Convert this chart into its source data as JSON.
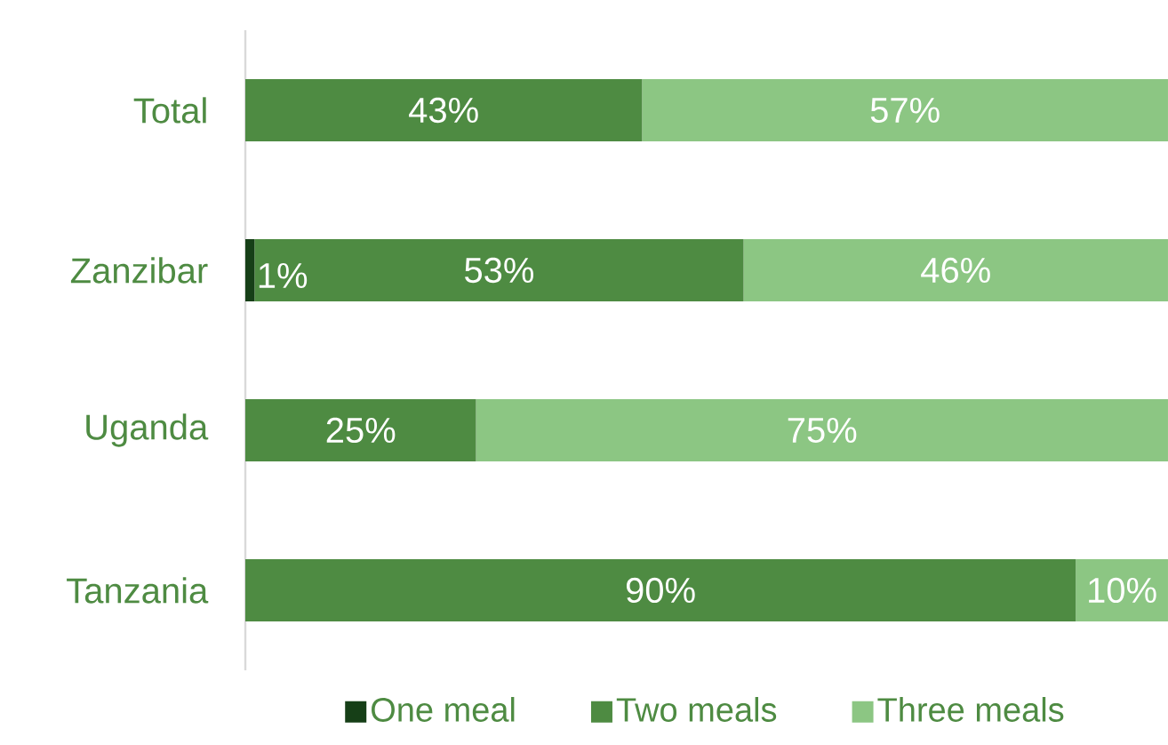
{
  "chart_data": {
    "type": "bar",
    "orientation": "horizontal",
    "stacked": true,
    "categories": [
      "Total",
      "Zanzibar",
      "Uganda",
      "Tanzania"
    ],
    "legend": "bottom",
    "series": [
      {
        "name": "One meal",
        "color": "#163f17",
        "values": [
          0,
          1,
          0,
          0
        ],
        "value_labels": [
          null,
          "1%",
          null,
          null
        ]
      },
      {
        "name": "Two meals",
        "color": "#4e8b42",
        "values": [
          43,
          53,
          25,
          90
        ],
        "value_labels": [
          "43%",
          "53%",
          "25%",
          "90%"
        ]
      },
      {
        "name": "Three meals",
        "color": "#8cc683",
        "values": [
          57,
          46,
          75,
          10
        ],
        "value_labels": [
          "57%",
          "46%",
          "75%",
          "10%"
        ]
      }
    ]
  }
}
